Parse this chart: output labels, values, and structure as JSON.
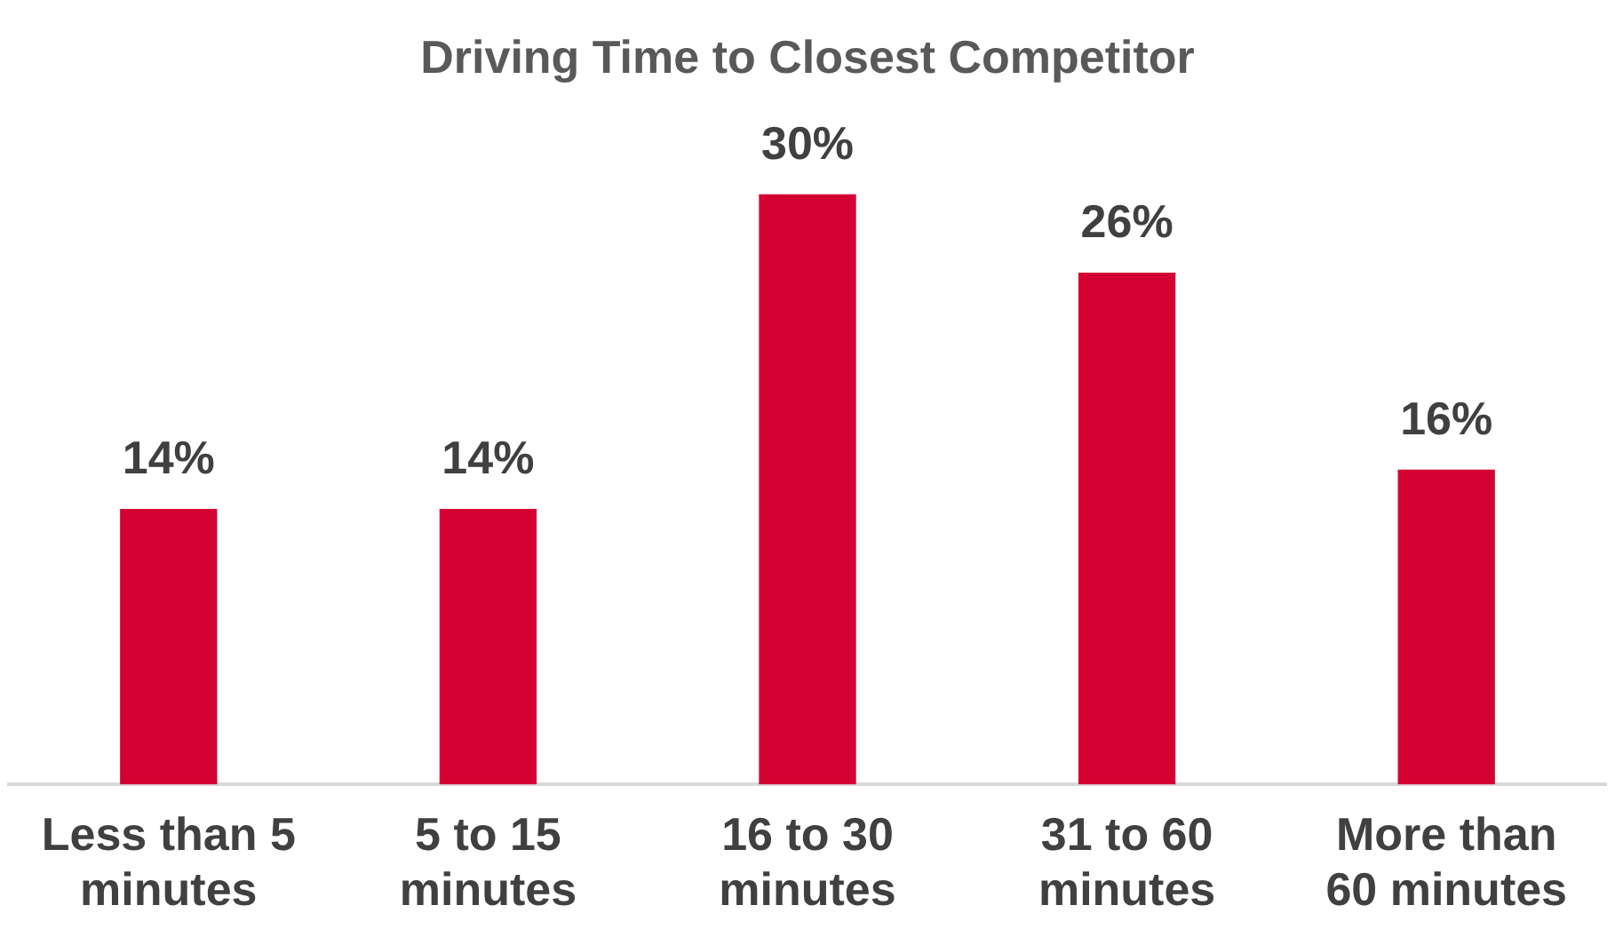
{
  "chart_data": {
    "type": "bar",
    "title": "Driving Time to Closest Competitor",
    "categories": [
      "Less than 5 minutes",
      "5 to 15 minutes",
      "16 to 30 minutes",
      "31 to 60 minutes",
      "More than 60 minutes"
    ],
    "values": [
      14,
      14,
      30,
      26,
      16
    ],
    "value_labels": [
      "14%",
      "14%",
      "30%",
      "26%",
      "16%"
    ],
    "color": "#d50032",
    "grid": false,
    "legend": false
  }
}
